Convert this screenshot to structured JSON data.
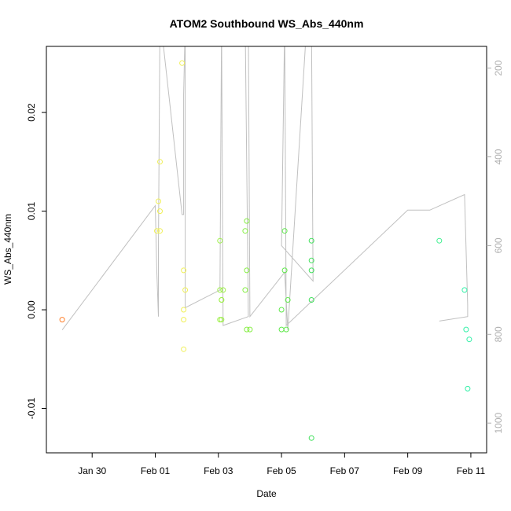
{
  "chart_data": {
    "type": "scatter",
    "title": "ATOM2 Southbound WS_Abs_440nm",
    "xlabel": "Date",
    "ylabel": "WS_Abs_440nm",
    "x_ticks": [
      {
        "value": 0,
        "label": "Jan 30"
      },
      {
        "value": 2,
        "label": "Feb 01"
      },
      {
        "value": 4,
        "label": "Feb 03"
      },
      {
        "value": 6,
        "label": "Feb 05"
      },
      {
        "value": 8,
        "label": "Feb 07"
      },
      {
        "value": 10,
        "label": "Feb 09"
      },
      {
        "value": 12,
        "label": "Feb 11"
      }
    ],
    "y_ticks": [
      {
        "value": -0.01,
        "label": "-0.01"
      },
      {
        "value": 0.0,
        "label": "0.00"
      },
      {
        "value": 0.01,
        "label": "0.01"
      },
      {
        "value": 0.02,
        "label": "0.02"
      }
    ],
    "y2_ticks": [
      {
        "value": 200,
        "label": "200"
      },
      {
        "value": 400,
        "label": "400"
      },
      {
        "value": 600,
        "label": "600"
      },
      {
        "value": 800,
        "label": "800"
      },
      {
        "value": 1000,
        "label": "1000"
      }
    ],
    "xlim": [
      -1.45,
      12.5
    ],
    "ylim": [
      -0.0145,
      0.0267
    ],
    "y2lim": [
      1067,
      151
    ],
    "grid": false,
    "points": [
      {
        "x": -0.95,
        "y": -0.001,
        "color": "#ff7f2a"
      },
      {
        "x": 2.05,
        "y": 0.008,
        "color": "#f0f058"
      },
      {
        "x": 2.1,
        "y": 0.011,
        "color": "#f0f058"
      },
      {
        "x": 2.15,
        "y": 0.008,
        "color": "#f0f058"
      },
      {
        "x": 2.15,
        "y": 0.01,
        "color": "#f0f058"
      },
      {
        "x": 2.15,
        "y": 0.015,
        "color": "#f0f058"
      },
      {
        "x": 2.85,
        "y": 0.025,
        "color": "#f0f058"
      },
      {
        "x": 2.9,
        "y": 0.004,
        "color": "#f0f058"
      },
      {
        "x": 2.9,
        "y": 0.0,
        "color": "#f0f058"
      },
      {
        "x": 2.9,
        "y": -0.001,
        "color": "#f0f058"
      },
      {
        "x": 2.9,
        "y": -0.004,
        "color": "#f0f058"
      },
      {
        "x": 2.95,
        "y": 0.002,
        "color": "#f0f058"
      },
      {
        "x": 4.05,
        "y": 0.007,
        "color": "#9ef04a"
      },
      {
        "x": 4.05,
        "y": 0.002,
        "color": "#9ef04a"
      },
      {
        "x": 4.05,
        "y": -0.001,
        "color": "#9ef04a"
      },
      {
        "x": 4.1,
        "y": 0.001,
        "color": "#9ef04a"
      },
      {
        "x": 4.1,
        "y": -0.001,
        "color": "#9ef04a"
      },
      {
        "x": 4.15,
        "y": 0.002,
        "color": "#9ef04a"
      },
      {
        "x": 4.1,
        "y": 0.001,
        "color": "#9ef04a"
      },
      {
        "x": 4.85,
        "y": 0.008,
        "color": "#86ee44"
      },
      {
        "x": 4.9,
        "y": 0.009,
        "color": "#86ee44"
      },
      {
        "x": 4.9,
        "y": 0.004,
        "color": "#86ee44"
      },
      {
        "x": 4.85,
        "y": 0.002,
        "color": "#86ee44"
      },
      {
        "x": 4.9,
        "y": -0.002,
        "color": "#86ee44"
      },
      {
        "x": 5.0,
        "y": -0.002,
        "color": "#86ee44"
      },
      {
        "x": 6.0,
        "y": 0.0,
        "color": "#5ee84a"
      },
      {
        "x": 6.0,
        "y": -0.002,
        "color": "#5ee84a"
      },
      {
        "x": 6.1,
        "y": 0.008,
        "color": "#5ee84a"
      },
      {
        "x": 6.1,
        "y": 0.004,
        "color": "#5ee84a"
      },
      {
        "x": 6.15,
        "y": -0.002,
        "color": "#5ee84a"
      },
      {
        "x": 6.2,
        "y": 0.001,
        "color": "#5ee84a"
      },
      {
        "x": 6.95,
        "y": 0.007,
        "color": "#3fe05a"
      },
      {
        "x": 6.95,
        "y": 0.005,
        "color": "#3fe05a"
      },
      {
        "x": 6.95,
        "y": 0.004,
        "color": "#3fe05a"
      },
      {
        "x": 6.95,
        "y": 0.001,
        "color": "#3fe05a"
      },
      {
        "x": 6.95,
        "y": -0.013,
        "color": "#3fe05a"
      },
      {
        "x": 11.0,
        "y": 0.007,
        "color": "#3ff090"
      },
      {
        "x": 11.8,
        "y": 0.002,
        "color": "#33f0a8"
      },
      {
        "x": 11.85,
        "y": -0.002,
        "color": "#33f0a8"
      },
      {
        "x": 11.95,
        "y": -0.003,
        "color": "#33f0a8"
      },
      {
        "x": 11.9,
        "y": -0.008,
        "color": "#33f0a8"
      }
    ],
    "line": {
      "color": "#c0c0c0",
      "y_axis": "right",
      "points": [
        [
          -0.95,
          790
        ],
        [
          2.0,
          510
        ],
        [
          2.05,
          660
        ],
        [
          2.1,
          760
        ],
        [
          2.1,
          610
        ],
        [
          2.15,
          80
        ],
        [
          2.85,
          530
        ],
        [
          2.9,
          530
        ],
        [
          2.9,
          260
        ],
        [
          2.95,
          100
        ],
        [
          2.95,
          740
        ],
        [
          4.05,
          700
        ],
        [
          4.1,
          100
        ],
        [
          4.15,
          780
        ],
        [
          4.95,
          760
        ],
        [
          4.85,
          100
        ],
        [
          4.95,
          100
        ],
        [
          5.0,
          760
        ],
        [
          6.1,
          660
        ],
        [
          6.2,
          790
        ],
        [
          6.8,
          100
        ],
        [
          6.95,
          100
        ],
        [
          7.0,
          680
        ],
        [
          6.0,
          600
        ],
        [
          6.1,
          100
        ],
        [
          6.15,
          780
        ],
        [
          10.0,
          520
        ],
        [
          10.7,
          520
        ],
        [
          11.8,
          485
        ],
        [
          11.9,
          735
        ],
        [
          11.9,
          760
        ],
        [
          11.0,
          770
        ]
      ]
    }
  }
}
